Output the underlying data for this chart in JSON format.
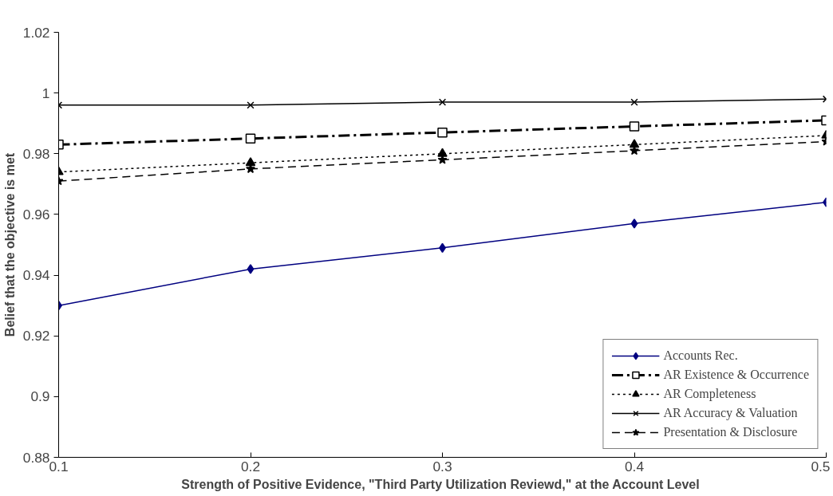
{
  "chart_data": {
    "type": "line",
    "xlabel": "Strength of Positive Evidence, \"Third Party Utilization Reviewd,\"  at the Account Level",
    "ylabel": "Belief that the objective is met",
    "x": [
      0.1,
      0.2,
      0.3,
      0.4,
      0.5
    ],
    "xlim": [
      0.1,
      0.5
    ],
    "xticks": [
      0.1,
      0.2,
      0.3,
      0.4,
      0.5
    ],
    "ylim": [
      0.88,
      1.02
    ],
    "yticks": [
      0.88,
      0.9,
      0.92,
      0.94,
      0.96,
      0.98,
      1,
      1.02
    ],
    "grid": false,
    "legend": "bottom right",
    "series": [
      {
        "name": "Accounts Rec.",
        "color": "#000080",
        "marker": "diamond",
        "line_style": "solid",
        "values": [
          0.93,
          0.942,
          0.949,
          0.957,
          0.964
        ]
      },
      {
        "name": "AR Existence & Occurrence",
        "color": "#000000",
        "marker": "square",
        "line_style": "dashdot",
        "values": [
          0.983,
          0.985,
          0.987,
          0.989,
          0.991
        ]
      },
      {
        "name": "AR Completeness",
        "color": "#000000",
        "marker": "triangle",
        "line_style": "dotted",
        "values": [
          0.974,
          0.977,
          0.98,
          0.983,
          0.986
        ]
      },
      {
        "name": "AR Accuracy & Valuation",
        "color": "#000000",
        "marker": "cross",
        "line_style": "solid",
        "values": [
          0.996,
          0.996,
          0.997,
          0.997,
          0.998
        ]
      },
      {
        "name": "Presentation & Disclosure",
        "color": "#000000",
        "marker": "star",
        "line_style": "dashed",
        "values": [
          0.971,
          0.975,
          0.978,
          0.981,
          0.984
        ]
      }
    ]
  }
}
